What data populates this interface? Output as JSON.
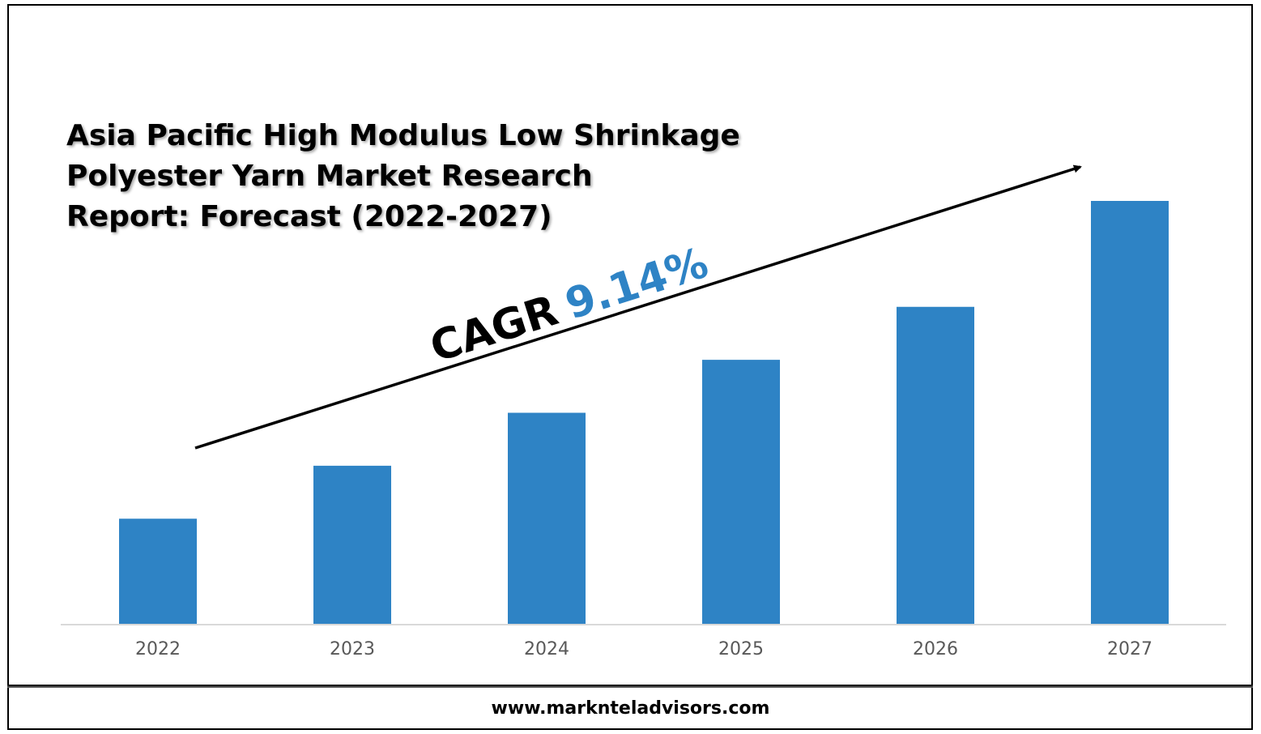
{
  "title_lines": [
    "Asia Pacific High Modulus Low Shrinkage",
    "Polyester Yarn Market Research",
    "Report: Forecast (2022-2027)"
  ],
  "cagr": {
    "label": "CAGR",
    "value": "9.14%"
  },
  "footer": "www.marknteladvisors.com",
  "colors": {
    "bar": "#2e83c5",
    "cagr_value": "#2e83c5",
    "axis": "#d9d9d9",
    "tick": "#595959"
  },
  "chart_data": {
    "type": "bar",
    "categories": [
      "2022",
      "2023",
      "2024",
      "2025",
      "2026",
      "2027"
    ],
    "values": [
      1.0,
      1.5,
      2.0,
      2.5,
      3.0,
      4.0
    ],
    "title": "Asia Pacific High Modulus Low Shrinkage Polyester Yarn Market Research Report: Forecast (2022-2027)",
    "xlabel": "",
    "ylabel": "",
    "ylim": [
      0,
      4.0
    ],
    "grid": false,
    "legend": "none"
  }
}
